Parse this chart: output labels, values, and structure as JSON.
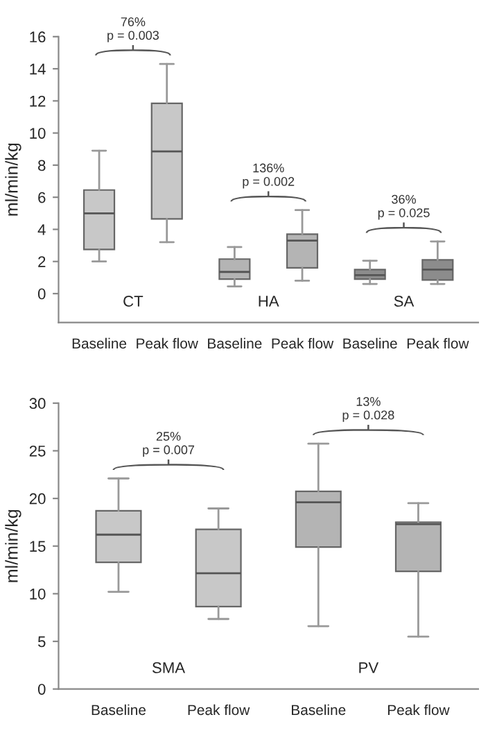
{
  "chart_data": [
    {
      "type": "box",
      "ylabel": "ml/min/kg",
      "categories": [
        "Baseline",
        "Peak flow",
        "Baseline",
        "Peak flow",
        "Baseline",
        "Peak flow"
      ],
      "boxes": [
        {
          "low": 2.0,
          "q1": 2.75,
          "median": 5.0,
          "q3": 6.45,
          "high": 8.9
        },
        {
          "low": 3.2,
          "q1": 4.65,
          "median": 8.85,
          "q3": 11.85,
          "high": 14.3
        },
        {
          "low": 0.45,
          "q1": 0.9,
          "median": 1.35,
          "q3": 2.15,
          "high": 2.9
        },
        {
          "low": 0.8,
          "q1": 1.6,
          "median": 3.3,
          "q3": 3.7,
          "high": 5.2
        },
        {
          "low": 0.6,
          "q1": 0.9,
          "median": 1.15,
          "q3": 1.5,
          "high": 2.05
        },
        {
          "low": 0.6,
          "q1": 0.85,
          "median": 1.5,
          "q3": 2.1,
          "high": 3.25
        }
      ],
      "colors": [
        "#c8c8c8",
        "#c8c8c8",
        "#b4b4b4",
        "#b4b4b4",
        "#8c8c8c",
        "#8c8c8c"
      ],
      "annotations": [
        "CT",
        "HA",
        "SA",
        "76%\np = 0.003",
        "136%\np = 0.002",
        "36%\np = 0.025"
      ],
      "ylim": [
        -1.8,
        16
      ],
      "yticks": [
        0,
        2,
        4,
        6,
        8,
        10,
        12,
        14,
        16
      ],
      "grid": false
    },
    {
      "type": "box",
      "ylabel": "ml/min/kg",
      "categories": [
        "Baseline",
        "Peak flow",
        "Baseline",
        "Peak flow"
      ],
      "boxes": [
        {
          "low": 10.2,
          "q1": 13.3,
          "median": 16.2,
          "q3": 18.7,
          "high": 22.1
        },
        {
          "low": 7.35,
          "q1": 8.65,
          "median": 12.15,
          "q3": 16.75,
          "high": 18.95
        },
        {
          "low": 6.6,
          "q1": 14.9,
          "median": 19.6,
          "q3": 20.75,
          "high": 25.75
        },
        {
          "low": 5.5,
          "q1": 12.35,
          "median": 17.3,
          "q3": 17.5,
          "high": 19.5
        }
      ],
      "colors": [
        "#c8c8c8",
        "#c8c8c8",
        "#b4b4b4",
        "#b4b4b4"
      ],
      "annotations": [
        "SMA",
        "PV",
        "25%\np = 0.007",
        "13%\np = 0.028"
      ],
      "ylim": [
        0,
        30
      ],
      "yticks": [
        0,
        5,
        10,
        15,
        20,
        25,
        30
      ],
      "grid": false
    }
  ]
}
